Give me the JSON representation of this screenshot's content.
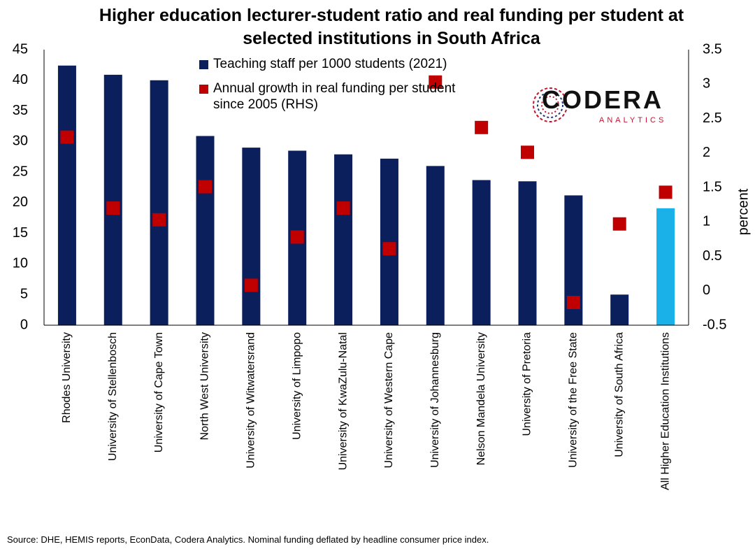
{
  "title": "Higher education lecturer-student ratio and real funding per student at selected institutions in South Africa",
  "source": "Source: DHE, HEMIS reports, EconData, Codera Analytics. Nominal funding deflated by headline consumer price index.",
  "logo": {
    "name": "CODERA",
    "sub": "ANALYTICS"
  },
  "colors": {
    "bar": "#0b1f5c",
    "bar_highlight": "#1ab0e8",
    "marker": "#c00000",
    "logo_accent": "#c8102e"
  },
  "chart_data": {
    "type": "bar",
    "categories": [
      "Rhodes University",
      "University of Stellenbosch",
      "University of Cape Town",
      "North West University",
      "University of Witwatersrand",
      "University of Limpopo",
      "University of KwaZulu-Natal",
      "University of Western Cape",
      "University of Johannesburg",
      "Nelson Mandela University",
      "University of Pretoria",
      "University of the Free State",
      "University of South Africa",
      "All Higher Education Institutions"
    ],
    "highlight_category": "All Higher Education Institutions",
    "series": [
      {
        "name": "Teaching staff per 1000 students (2021)",
        "type": "bar",
        "axis": "left",
        "values": [
          42.4,
          40.9,
          40.0,
          30.9,
          29.0,
          28.5,
          27.9,
          27.2,
          26.0,
          23.7,
          23.5,
          21.2,
          5.0,
          19.1
        ]
      },
      {
        "name": "Annual growth in real funding per student since 2005 (RHS)",
        "type": "scatter",
        "axis": "right",
        "marker": "square",
        "values": [
          2.23,
          1.2,
          1.03,
          1.51,
          0.08,
          0.78,
          1.2,
          0.61,
          3.03,
          2.37,
          2.01,
          -0.17,
          0.97,
          1.43
        ]
      }
    ],
    "y_left": {
      "min": 0,
      "max": 45,
      "ticks": [
        "0",
        "5",
        "10",
        "15",
        "20",
        "25",
        "30",
        "35",
        "40",
        "45"
      ]
    },
    "y_right": {
      "min": -0.5,
      "max": 3.5,
      "label": "percent",
      "ticks": [
        "-0.5",
        "0",
        "0.5",
        "1",
        "1.5",
        "2",
        "2.5",
        "3",
        "3.5"
      ]
    },
    "xlabel": "",
    "grid": false,
    "legend_position": "top-center"
  }
}
